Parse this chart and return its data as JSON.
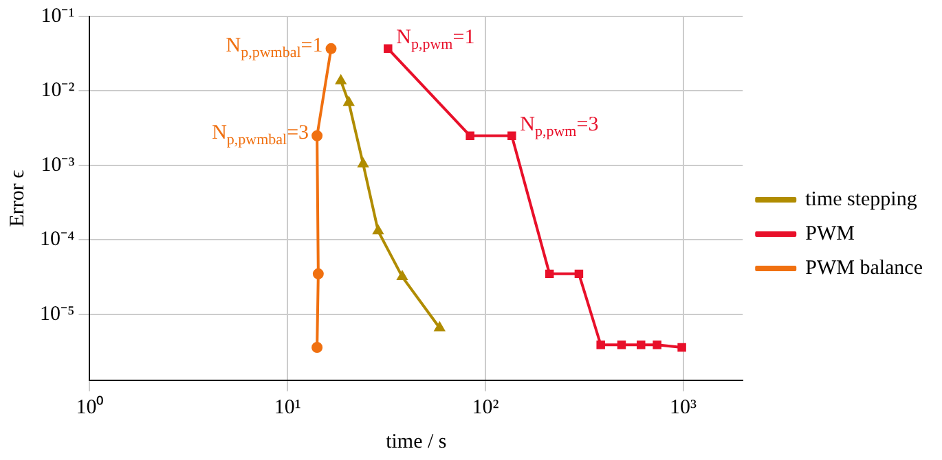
{
  "chart_data": {
    "type": "line",
    "xlabel": "time / s",
    "ylabel": "Error ϵ",
    "log": "xy",
    "grid": true,
    "legend": "right",
    "xlim": [
      1,
      2000
    ],
    "xticks": [
      {
        "value": 1,
        "label": "10⁰"
      },
      {
        "value": 10,
        "label": "10¹"
      },
      {
        "value": 100,
        "label": "10²"
      },
      {
        "value": 1000,
        "label": "10³"
      }
    ],
    "ylim": [
      1.3e-06,
      0.1
    ],
    "yticks": [
      {
        "value": 1e-05,
        "label": "10⁻⁵"
      },
      {
        "value": 0.0001,
        "label": "10⁻⁴"
      },
      {
        "value": 0.001,
        "label": "10⁻³"
      },
      {
        "value": 0.01,
        "label": "10⁻²"
      },
      {
        "value": 0.1,
        "label": "10⁻¹"
      }
    ],
    "series": [
      {
        "name": "time stepping",
        "color": "#b08c00",
        "marker": "triangle",
        "x": [
          18.6,
          20.4,
          24.1,
          28.7,
          38.0,
          58.7
        ],
        "values": [
          0.0137,
          0.007,
          0.00105,
          0.000132,
          3.2e-05,
          6.6e-06
        ]
      },
      {
        "name": "PWM",
        "color": "#e8102a",
        "marker": "square",
        "x": [
          32.2,
          83.7,
          136,
          211,
          297,
          383,
          488,
          612,
          738,
          984
        ],
        "values": [
          0.037,
          0.0025,
          0.0025,
          3.5e-05,
          3.5e-05,
          3.9e-06,
          3.9e-06,
          3.9e-06,
          3.9e-06,
          3.6e-06
        ]
      },
      {
        "name": "PWM balance",
        "color": "#f07010",
        "marker": "circle",
        "x": [
          16.6,
          14.1,
          14.3,
          14.1
        ],
        "values": [
          0.037,
          0.0025,
          3.5e-05,
          3.6e-06
        ]
      }
    ],
    "annotations": [
      {
        "text": "N$_{p,pwmbal}$=1",
        "x": 16.6,
        "y": 0.037
      },
      {
        "text": "N$_{p,pwmbal}$=3",
        "x": 14.1,
        "y": 0.0025
      },
      {
        "text": "N$_{p,pwm}$=1",
        "x": 32.2,
        "y": 0.037
      },
      {
        "text": "N$_{p,pwm}$=3",
        "x": 136,
        "y": 0.0025
      }
    ]
  }
}
